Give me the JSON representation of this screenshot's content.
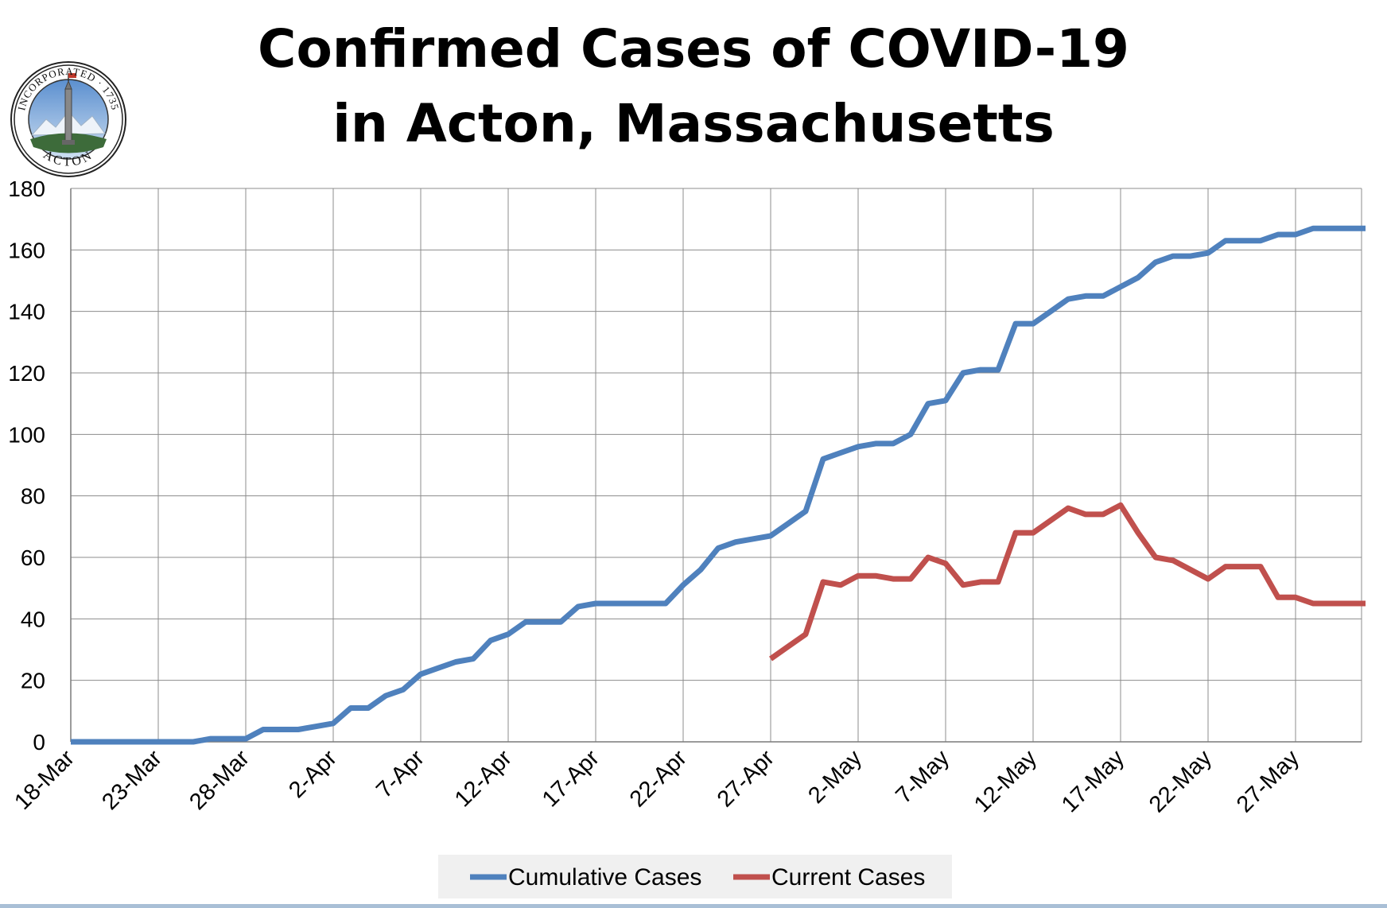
{
  "seal": {
    "top_text": "INCORPORATED · 1735",
    "bottom_text": "ACTON"
  },
  "colors": {
    "cumulative": "#4f81bd",
    "current": "#c0504d",
    "grid": "#8c8c8c",
    "legend_bg": "#f0f0f0",
    "bottom_bar": "#a9bfd6"
  },
  "chart_data": {
    "type": "line",
    "title": [
      "Confirmed Cases of COVID-19",
      "in Acton, Massachusetts"
    ],
    "xlabel": "",
    "ylabel": "",
    "ylim": [
      0,
      180
    ],
    "y_ticks": [
      "0",
      "20",
      "40",
      "60",
      "80",
      "100",
      "120",
      "140",
      "160",
      "180"
    ],
    "x_tick_labels": [
      "18-Mar",
      "23-Mar",
      "28-Mar",
      "2-Apr",
      "7-Apr",
      "12-Apr",
      "17-Apr",
      "22-Apr",
      "27-Apr",
      "2-May",
      "7-May",
      "12-May",
      "17-May",
      "22-May",
      "27-May"
    ],
    "x_range_days": [
      0,
      75
    ],
    "grid": true,
    "legend_position": "bottom",
    "series": [
      {
        "name": "Cumulative Cases",
        "x": [
          0,
          7,
          8,
          10,
          11,
          13,
          14,
          15,
          16,
          17,
          18,
          19,
          20,
          21,
          22,
          23,
          24,
          25,
          26,
          27,
          28,
          29,
          30,
          31,
          34,
          35,
          36,
          37,
          38,
          39,
          40,
          41,
          42,
          43,
          44,
          45,
          46,
          47,
          48,
          49,
          50,
          51,
          52,
          53,
          54,
          55,
          56,
          57,
          58,
          59,
          60,
          61,
          62,
          63,
          64,
          65,
          66,
          67,
          68,
          69,
          70,
          71,
          72,
          73,
          74
        ],
        "values": [
          0,
          0,
          1,
          1,
          4,
          4,
          5,
          6,
          11,
          11,
          15,
          17,
          22,
          24,
          26,
          27,
          33,
          35,
          39,
          39,
          39,
          44,
          45,
          45,
          45,
          51,
          56,
          63,
          65,
          66,
          67,
          71,
          75,
          92,
          94,
          96,
          97,
          97,
          100,
          110,
          111,
          120,
          121,
          121,
          136,
          136,
          140,
          144,
          145,
          145,
          148,
          151,
          156,
          158,
          158,
          159,
          163,
          163,
          163,
          165,
          165,
          167,
          167,
          167,
          167
        ]
      },
      {
        "name": "Current Cases",
        "x": [
          40,
          41,
          42,
          43,
          44,
          45,
          46,
          47,
          48,
          49,
          50,
          51,
          52,
          53,
          54,
          55,
          56,
          57,
          58,
          59,
          60,
          61,
          62,
          63,
          64,
          65,
          66,
          67,
          68,
          69,
          70,
          71,
          72,
          73,
          74
        ],
        "values": [
          27,
          31,
          35,
          52,
          51,
          54,
          54,
          53,
          53,
          60,
          58,
          51,
          52,
          52,
          68,
          68,
          72,
          76,
          74,
          74,
          77,
          68,
          60,
          59,
          56,
          53,
          57,
          57,
          57,
          47,
          47,
          45,
          45,
          45,
          45
        ]
      }
    ]
  }
}
